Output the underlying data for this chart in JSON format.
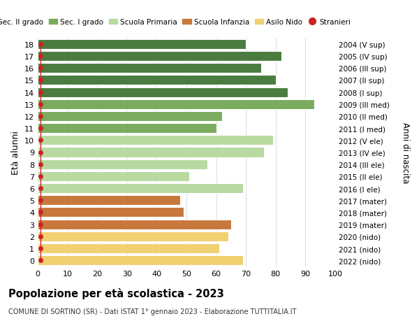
{
  "ages": [
    18,
    17,
    16,
    15,
    14,
    13,
    12,
    11,
    10,
    9,
    8,
    7,
    6,
    5,
    4,
    3,
    2,
    1,
    0
  ],
  "values": [
    70,
    82,
    75,
    80,
    84,
    93,
    62,
    60,
    79,
    76,
    57,
    51,
    69,
    48,
    49,
    65,
    64,
    61,
    69
  ],
  "right_labels_by_age": {
    "18": "2004 (V sup)",
    "17": "2005 (IV sup)",
    "16": "2006 (III sup)",
    "15": "2007 (II sup)",
    "14": "2008 (I sup)",
    "13": "2009 (III med)",
    "12": "2010 (II med)",
    "11": "2011 (I med)",
    "10": "2012 (V ele)",
    "9": "2013 (IV ele)",
    "8": "2014 (III ele)",
    "7": "2015 (II ele)",
    "6": "2016 (I ele)",
    "5": "2017 (mater)",
    "4": "2018 (mater)",
    "3": "2019 (mater)",
    "2": "2020 (nido)",
    "1": "2021 (nido)",
    "0": "2022 (nido)"
  },
  "bar_colors_by_age": {
    "18": "#4a7c3f",
    "17": "#4a7c3f",
    "16": "#4a7c3f",
    "15": "#4a7c3f",
    "14": "#4a7c3f",
    "13": "#7aab5e",
    "12": "#7aab5e",
    "11": "#7aab5e",
    "10": "#b8d9a0",
    "9": "#b8d9a0",
    "8": "#b8d9a0",
    "7": "#b8d9a0",
    "6": "#b8d9a0",
    "5": "#c8783c",
    "4": "#c8783c",
    "3": "#c8783c",
    "2": "#f0d070",
    "1": "#f0d070",
    "0": "#f0d070"
  },
  "stranieri_x": [
    1,
    1,
    1,
    1,
    1,
    1,
    1,
    1,
    1,
    1,
    1,
    1,
    1,
    1,
    1,
    1,
    1,
    1,
    1
  ],
  "legend_labels": [
    "Sec. II grado",
    "Sec. I grado",
    "Scuola Primaria",
    "Scuola Infanzia",
    "Asilo Nido",
    "Stranieri"
  ],
  "legend_colors": [
    "#4a7c3f",
    "#7aab5e",
    "#b8d9a0",
    "#c8783c",
    "#f0d070",
    "#cc2222"
  ],
  "ylabel": "Età alunni",
  "right_ylabel": "Anni di nascita",
  "title": "Popolazione per età scolastica - 2023",
  "subtitle": "COMUNE DI SORTINO (SR) - Dati ISTAT 1° gennaio 2023 - Elaborazione TUTTITALIA.IT",
  "xlim": [
    0,
    100
  ],
  "xticks": [
    0,
    10,
    20,
    30,
    40,
    50,
    60,
    70,
    80,
    90,
    100
  ],
  "bg_color": "#ffffff",
  "grid_color": "#cccccc",
  "stranieri_color": "#cc2222"
}
